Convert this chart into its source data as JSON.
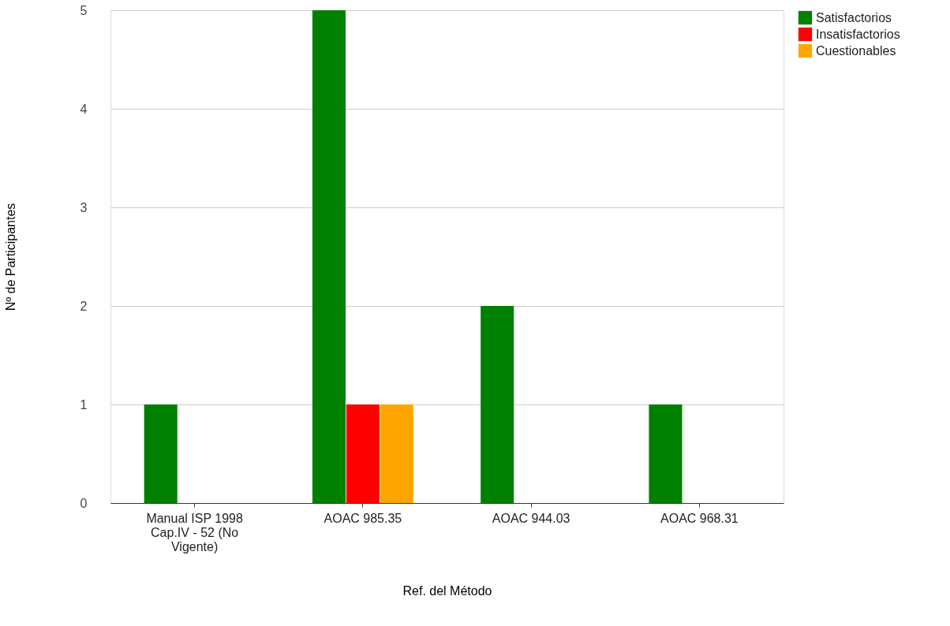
{
  "chart_data": {
    "type": "bar",
    "xlabel": "Ref. del Método",
    "ylabel": "Nº de Participantes",
    "categories": [
      "Manual ISP 1998 Cap.IV - 52 (No Vigente)",
      "AOAC 985.35",
      "AOAC 944.03",
      "AOAC 968.31"
    ],
    "series": [
      {
        "name": "Satisfactorios",
        "color": "#008000",
        "values": [
          1,
          5,
          2,
          1
        ]
      },
      {
        "name": "Insatisfactorios",
        "color": "#ff0000",
        "values": [
          0,
          1,
          0,
          0
        ]
      },
      {
        "name": "Cuestionables",
        "color": "#ffa500",
        "values": [
          0,
          1,
          0,
          0
        ]
      }
    ],
    "ylim": [
      0,
      5
    ],
    "yticks": [
      0,
      1,
      2,
      3,
      4,
      5
    ],
    "grid": true,
    "legend": "top right"
  }
}
